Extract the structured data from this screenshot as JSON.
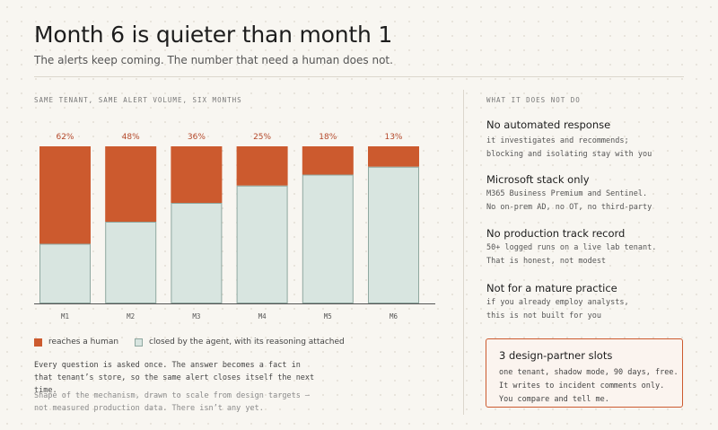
{
  "header": {
    "title": "Month 6 is quieter than month 1",
    "subtitle": "The alerts keep coming. The number that need a human does not."
  },
  "colors": {
    "human": "#cc5a2e",
    "agent": "#d8e5e0",
    "agent_stroke": "#8fa8a0",
    "accent_text": "#b4482a"
  },
  "chart_data": {
    "type": "bar",
    "stacked": true,
    "normalized": true,
    "title": "SAME TENANT, SAME ALERT VOLUME, SIX MONTHS",
    "categories": [
      "M1",
      "M2",
      "M3",
      "M4",
      "M5",
      "M6"
    ],
    "series": [
      {
        "name": "reaches a human",
        "values": [
          62,
          48,
          36,
          25,
          18,
          13
        ]
      },
      {
        "name": "closed by the agent, with its reasoning attached",
        "values": [
          38,
          52,
          64,
          75,
          82,
          87
        ]
      }
    ],
    "data_labels": [
      "62%",
      "48%",
      "36%",
      "25%",
      "18%",
      "13%"
    ],
    "ylim": [
      0,
      100
    ],
    "grid": false,
    "legend": "bottom-left"
  },
  "notes": {
    "main": "Every question is asked once. The answer becomes a fact in that tenant’s store, so the same alert closes itself the next time.",
    "disclaimer": "Shape of the mechanism, drawn to scale from design targets — not measured production data. There isn’t any yet."
  },
  "limits": {
    "heading": "WHAT IT DOES NOT DO",
    "items": [
      {
        "title": "No automated response",
        "line1": "it investigates and recommends;",
        "line2": "blocking and isolating stay with you"
      },
      {
        "title": "Microsoft stack only",
        "line1": "M365 Business Premium and Sentinel.",
        "line2": "No on-prem AD, no OT, no third-party"
      },
      {
        "title": "No production track record",
        "line1": "50+ logged runs on a live lab tenant.",
        "line2": "That is honest, not modest"
      },
      {
        "title": "Not for a mature practice",
        "line1": "if you already employ analysts,",
        "line2": "this is not built for you"
      }
    ]
  },
  "cta": {
    "title": "3 design-partner slots",
    "description": "one tenant, shadow mode, 90 days, free. It writes to incident comments only. You compare and tell me."
  }
}
